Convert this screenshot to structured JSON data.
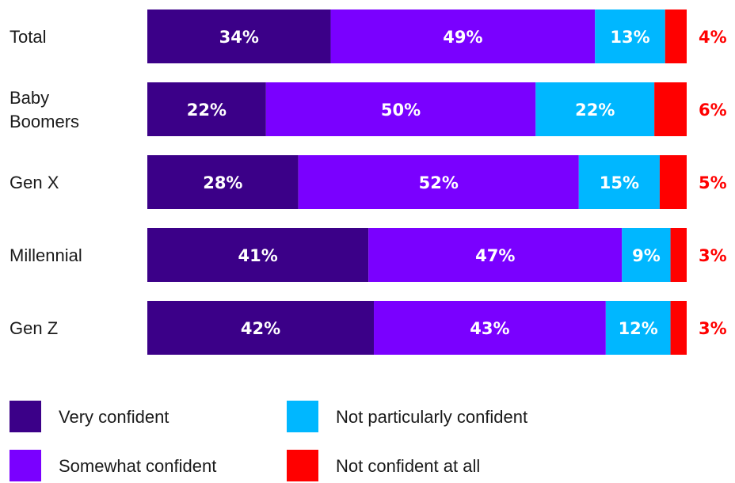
{
  "chart_data": {
    "type": "bar",
    "orientation": "horizontal",
    "stacked": true,
    "normalized_percent": true,
    "categories": [
      [
        "Total"
      ],
      [
        "Baby",
        "Boomers"
      ],
      [
        "Gen X"
      ],
      [
        "Millennial"
      ],
      [
        "Gen Z"
      ]
    ],
    "series": [
      {
        "name": "Very confident",
        "color": "#3b0088",
        "values": [
          34,
          22,
          28,
          41,
          42
        ]
      },
      {
        "name": "Somewhat confident",
        "color": "#7a00ff",
        "values": [
          49,
          50,
          52,
          47,
          43
        ]
      },
      {
        "name": "Not particularly confident",
        "color": "#00b7ff",
        "values": [
          13,
          22,
          15,
          9,
          12
        ]
      },
      {
        "name": "Not confident at all",
        "color": "#ff0000",
        "values": [
          4,
          6,
          5,
          3,
          3
        ]
      }
    ],
    "value_suffix": "%",
    "outside_label_color": "#ff0000",
    "legend": {
      "placement": "bottom",
      "columns": 2
    }
  }
}
